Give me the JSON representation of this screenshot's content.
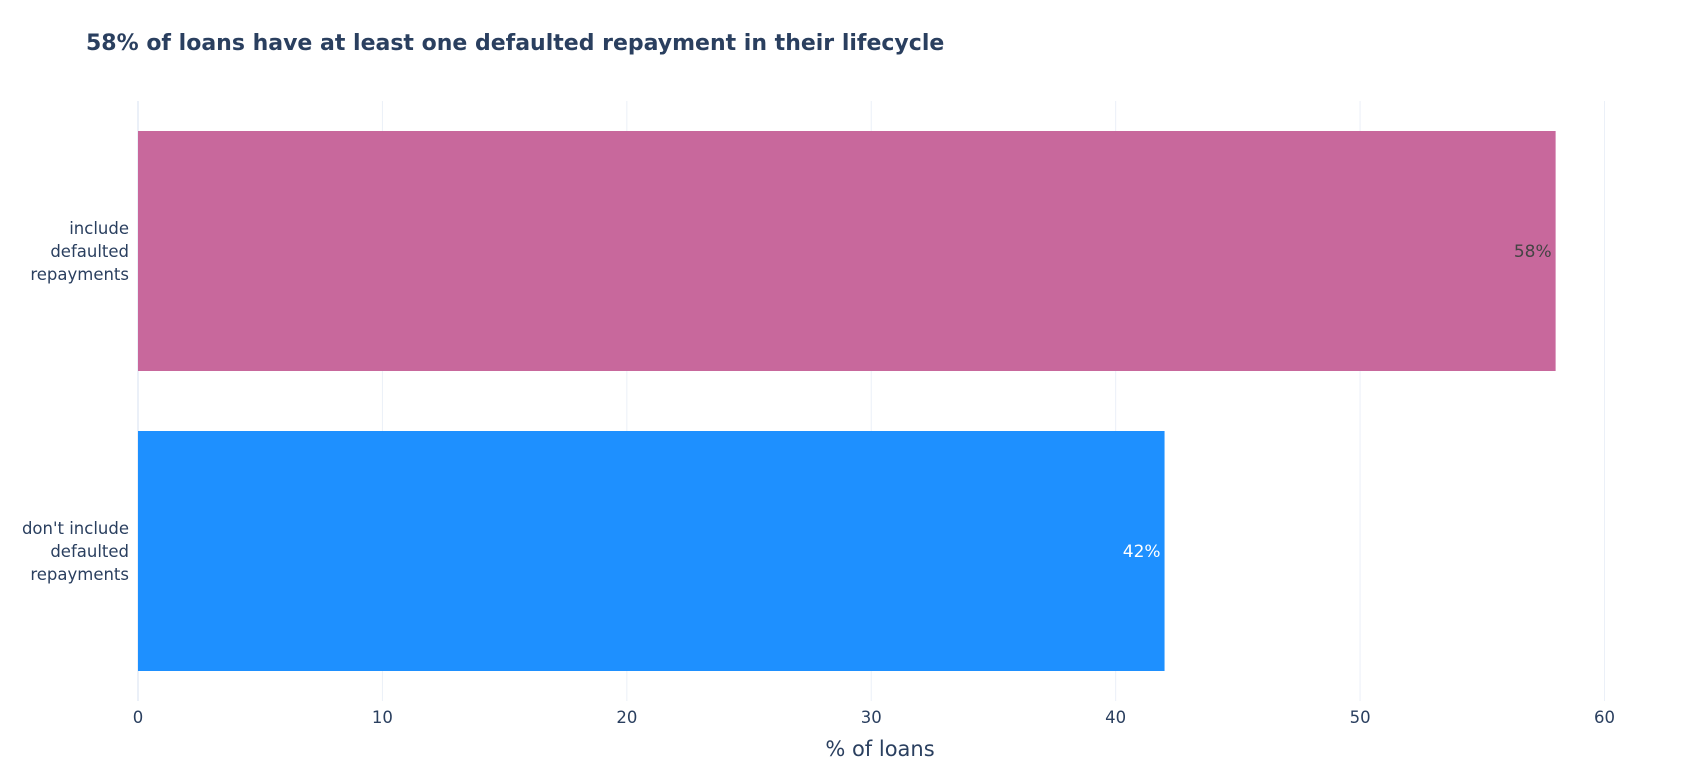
{
  "chart_data": {
    "type": "bar",
    "orientation": "horizontal",
    "title": "58% of loans have at least one defaulted repayment in their lifecycle",
    "xlabel": "% of loans",
    "ylabel": "",
    "xlim": [
      0,
      62
    ],
    "x_ticks": [
      0,
      10,
      20,
      30,
      40,
      50,
      60
    ],
    "categories": [
      [
        "include",
        "defaulted",
        "repayments"
      ],
      [
        "don't include",
        "defaulted",
        "repayments"
      ]
    ],
    "values": [
      58,
      42
    ],
    "data_labels": [
      "58%",
      "42%"
    ],
    "colors": [
      "#c8689c",
      "#1e90ff"
    ],
    "label_colors": [
      "#444444",
      "#ffffff"
    ],
    "grid": true,
    "legend": "none"
  }
}
